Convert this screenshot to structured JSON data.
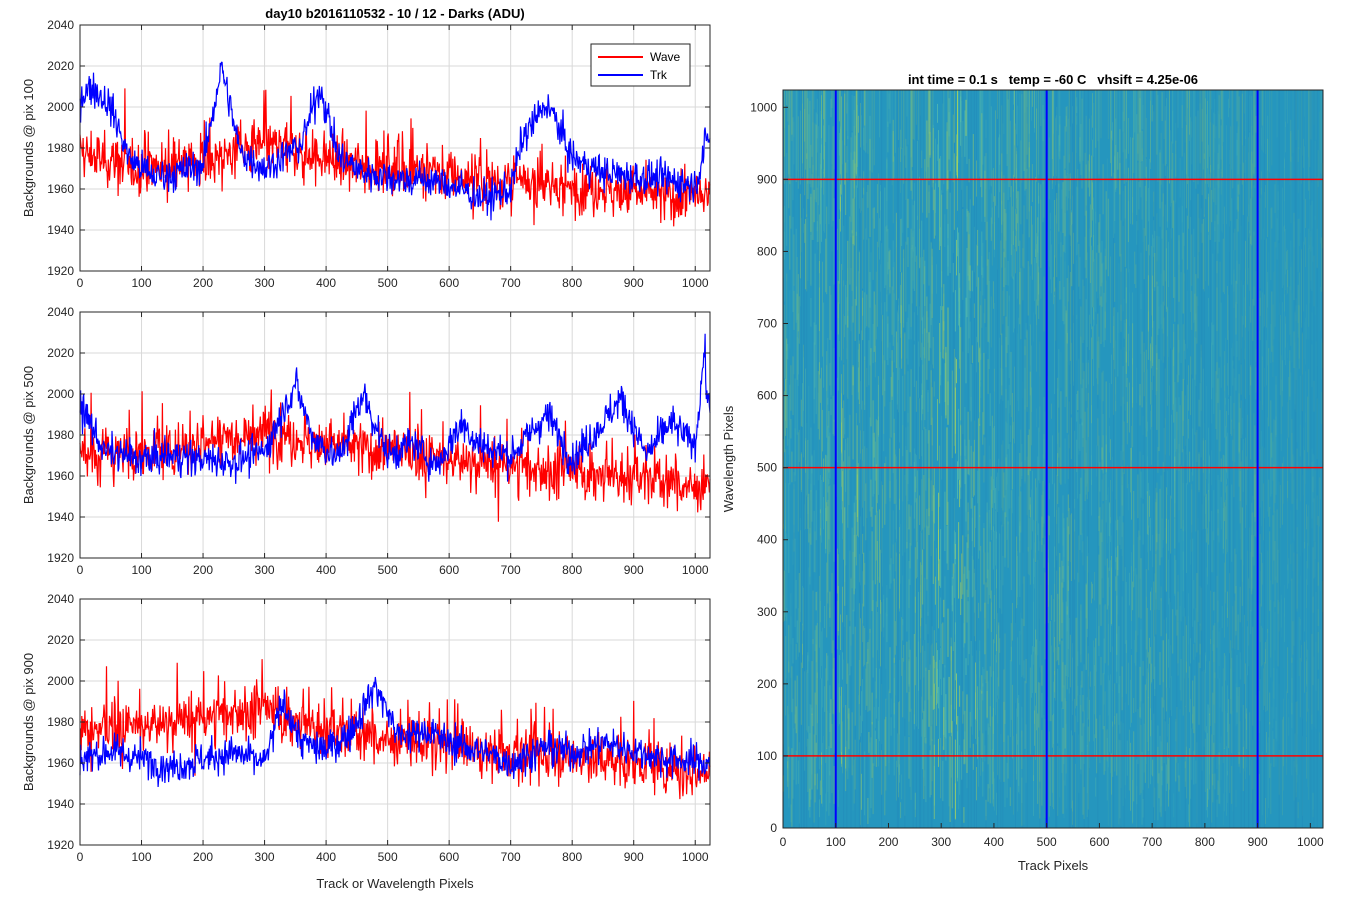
{
  "figure": {
    "left_title": "day10 b2016110532 - 10 / 12 - Darks (ADU)",
    "right_title": "int time = 0.1 s   temp = -60 C   vhsift = 4.25e-06"
  },
  "colors": {
    "wave": "#ff0000",
    "trk": "#0000ff",
    "grid": "#d9d9d9",
    "axis": "#262626",
    "heatmap_base": "#2596be",
    "heatmap_bright": "#a9d45c"
  },
  "chart_data": [
    {
      "type": "line",
      "title": "day10 b2016110532 - 10 / 12 - Darks (ADU)",
      "xlabel": "",
      "ylabel": "Backgrounds @ pix 100",
      "xlim": [
        0,
        1024
      ],
      "ylim": [
        1920,
        2040
      ],
      "xticks": [
        0,
        100,
        200,
        300,
        400,
        500,
        600,
        700,
        800,
        900,
        1000
      ],
      "yticks": [
        1920,
        1940,
        1960,
        1980,
        2000,
        2020,
        2040
      ],
      "grid": true,
      "legend": {
        "position": "top-right",
        "entries": [
          "Wave",
          "Trk"
        ]
      },
      "series": [
        {
          "name": "Wave",
          "color": "#ff0000",
          "x": [
            0,
            50,
            100,
            150,
            200,
            250,
            300,
            350,
            400,
            450,
            500,
            550,
            600,
            650,
            700,
            750,
            800,
            850,
            900,
            950,
            1020
          ],
          "values": [
            1978,
            1973,
            1970,
            1972,
            1974,
            1978,
            1981,
            1978,
            1975,
            1972,
            1971,
            1970,
            1968,
            1965,
            1963,
            1962,
            1961,
            1960,
            1959,
            1957,
            1955
          ]
        },
        {
          "name": "Trk",
          "color": "#0000ff",
          "x": [
            0,
            20,
            50,
            80,
            120,
            160,
            200,
            230,
            260,
            300,
            360,
            390,
            420,
            460,
            500,
            540,
            560,
            600,
            660,
            700,
            720,
            760,
            800,
            850,
            900,
            950,
            1000,
            1020
          ],
          "values": [
            2005,
            2010,
            2000,
            1975,
            1966,
            1968,
            1972,
            2020,
            1978,
            1970,
            1982,
            2010,
            1976,
            1968,
            1966,
            1964,
            1965,
            1962,
            1955,
            1960,
            1985,
            2002,
            1975,
            1968,
            1966,
            1965,
            1962,
            1985
          ]
        }
      ]
    },
    {
      "type": "line",
      "title": "",
      "xlabel": "",
      "ylabel": "Backgrounds @ pix 500",
      "xlim": [
        0,
        1024
      ],
      "ylim": [
        1920,
        2040
      ],
      "xticks": [
        0,
        100,
        200,
        300,
        400,
        500,
        600,
        700,
        800,
        900,
        1000
      ],
      "yticks": [
        1920,
        1940,
        1960,
        1980,
        2000,
        2020,
        2040
      ],
      "grid": true,
      "series": [
        {
          "name": "Wave",
          "color": "#ff0000",
          "x": [
            0,
            50,
            100,
            150,
            200,
            250,
            300,
            350,
            400,
            450,
            500,
            550,
            600,
            650,
            700,
            750,
            800,
            850,
            900,
            950,
            1020
          ],
          "values": [
            1972,
            1970,
            1971,
            1973,
            1977,
            1980,
            1982,
            1978,
            1976,
            1974,
            1972,
            1970,
            1968,
            1966,
            1965,
            1963,
            1962,
            1960,
            1959,
            1957,
            1955
          ]
        },
        {
          "name": "Trk",
          "color": "#0000ff",
          "x": [
            0,
            40,
            100,
            150,
            200,
            250,
            300,
            350,
            380,
            420,
            460,
            500,
            540,
            580,
            620,
            650,
            700,
            760,
            800,
            840,
            880,
            920,
            960,
            1000,
            1015,
            1020
          ],
          "values": [
            1995,
            1972,
            1968,
            1970,
            1968,
            1967,
            1972,
            2005,
            1978,
            1968,
            2000,
            1970,
            1976,
            1965,
            1986,
            1975,
            1970,
            1990,
            1968,
            1982,
            1998,
            1970,
            1986,
            1975,
            2022,
            1995
          ]
        }
      ]
    },
    {
      "type": "line",
      "title": "",
      "xlabel": "Track or Wavelength Pixels",
      "ylabel": "Backgrounds @ pix 900",
      "xlim": [
        0,
        1024
      ],
      "ylim": [
        1920,
        2040
      ],
      "xticks": [
        0,
        100,
        200,
        300,
        400,
        500,
        600,
        700,
        800,
        900,
        1000
      ],
      "yticks": [
        1920,
        1940,
        1960,
        1980,
        2000,
        2020,
        2040
      ],
      "grid": true,
      "series": [
        {
          "name": "Wave",
          "color": "#ff0000",
          "x": [
            0,
            50,
            100,
            150,
            200,
            250,
            300,
            350,
            400,
            450,
            500,
            550,
            600,
            650,
            700,
            750,
            800,
            850,
            900,
            950,
            1020
          ],
          "values": [
            1975,
            1977,
            1978,
            1980,
            1982,
            1985,
            1986,
            1980,
            1976,
            1974,
            1972,
            1970,
            1968,
            1966,
            1965,
            1964,
            1963,
            1962,
            1960,
            1958,
            1955
          ]
        },
        {
          "name": "Trk",
          "color": "#0000ff",
          "x": [
            0,
            50,
            100,
            150,
            200,
            250,
            300,
            330,
            360,
            400,
            440,
            480,
            520,
            560,
            600,
            650,
            700,
            760,
            800,
            850,
            900,
            950,
            1020
          ],
          "values": [
            1962,
            1966,
            1962,
            1958,
            1962,
            1965,
            1960,
            1990,
            1970,
            1966,
            1975,
            1998,
            1972,
            1976,
            1970,
            1966,
            1960,
            1968,
            1965,
            1970,
            1966,
            1962,
            1960
          ]
        }
      ]
    },
    {
      "type": "heatmap",
      "title": "int time = 0.1 s   temp = -60 C   vhsift = 4.25e-06",
      "xlabel": "Track Pixels",
      "ylabel": "Wavelength Pixels",
      "xlim": [
        0,
        1024
      ],
      "ylim": [
        0,
        1024
      ],
      "xticks": [
        0,
        100,
        200,
        300,
        400,
        500,
        600,
        700,
        800,
        900,
        1000
      ],
      "yticks": [
        0,
        100,
        200,
        300,
        400,
        500,
        600,
        700,
        800,
        900,
        1000
      ],
      "vertical_lines": {
        "color": "#0000ff",
        "x": [
          100,
          500,
          900
        ]
      },
      "horizontal_lines": {
        "color": "#ff0000",
        "y": [
          100,
          500,
          900
        ]
      }
    }
  ]
}
